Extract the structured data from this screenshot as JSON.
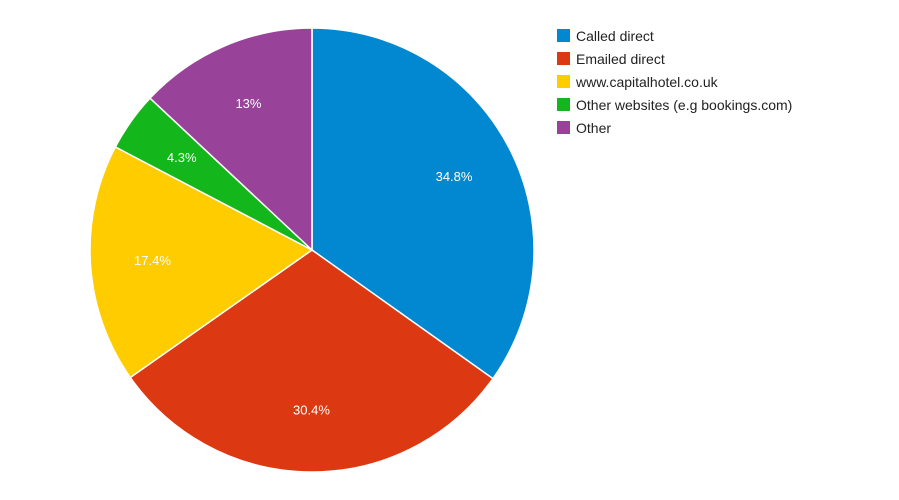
{
  "chart_data": {
    "type": "pie",
    "slices": [
      {
        "label": "Called direct",
        "value": 34.8,
        "display": "34.8%",
        "color": "#0288d1"
      },
      {
        "label": "Emailed direct",
        "value": 30.4,
        "display": "30.4%",
        "color": "#dc3912"
      },
      {
        "label": "www.capitalhotel.co.uk",
        "value": 17.4,
        "display": "17.4%",
        "color": "#ffcc00"
      },
      {
        "label": "Other websites (e.g bookings.com)",
        "value": 4.3,
        "display": "4.3%",
        "color": "#13b71b"
      },
      {
        "label": "Other",
        "value": 13,
        "display": "13%",
        "color": "#984399"
      }
    ],
    "start_angle": "12 o'clock",
    "direction": "clockwise",
    "legend_position": "right",
    "title": ""
  }
}
